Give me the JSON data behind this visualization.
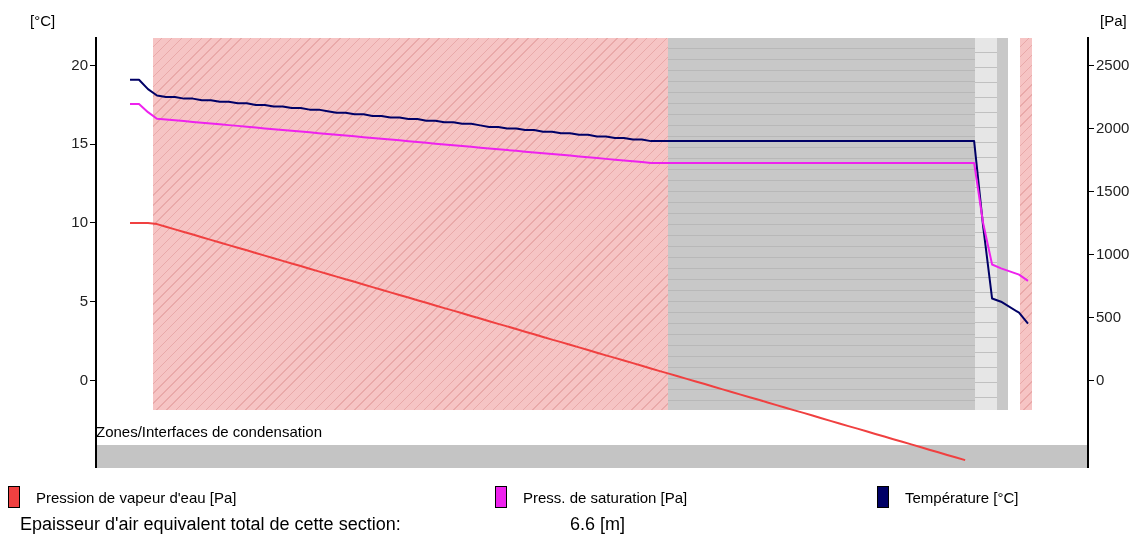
{
  "chart_data": {
    "type": "line",
    "ylabel": "[°C]",
    "y2label": "[Pa]",
    "categories": [
      null,
      null,
      null,
      null,
      null,
      null,
      null,
      null,
      null,
      null,
      null,
      null,
      null,
      null,
      null,
      null,
      null,
      null,
      null,
      null,
      null,
      null,
      null,
      null,
      null,
      null,
      null,
      null,
      null,
      null,
      null,
      null,
      null,
      null,
      null,
      null,
      null,
      null,
      null,
      null,
      null,
      null,
      null,
      null,
      null,
      null,
      null,
      null,
      null,
      null,
      null,
      null,
      null,
      null,
      null,
      null,
      null,
      null,
      null,
      null,
      null,
      null,
      null,
      null,
      null,
      null,
      null,
      null,
      null,
      null,
      null,
      null,
      null,
      null,
      null,
      null,
      null,
      null,
      null,
      null,
      null,
      null,
      null,
      null,
      null,
      null,
      null,
      null,
      null,
      null,
      null,
      null,
      null,
      null,
      null,
      null,
      null,
      null,
      null,
      null,
      null
    ],
    "ylim": [
      -5.5,
      21.75
    ],
    "yticks": [
      0,
      5,
      10,
      15,
      20
    ],
    "y2lim": [
      -687.5,
      2718.75
    ],
    "y2ticks": [
      0,
      500,
      1000,
      1500,
      2000,
      2500
    ],
    "legend": "bottom",
    "marker": "none",
    "line_style": "solid",
    "series": [
      {
        "name": "Pression de vapeur d'eau [Pa]",
        "color": "#f04040",
        "axis": "y2",
        "values": [
          1250,
          1250,
          1250,
          1241,
          1220,
          1199,
          1178,
          1158,
          1137,
          1116,
          1095,
          1074,
          1053,
          1033,
          1012,
          991,
          970,
          949,
          928,
          908,
          887,
          866,
          845,
          824,
          803,
          783,
          762,
          741,
          720,
          699,
          678,
          658,
          637,
          616,
          595,
          574,
          554,
          533,
          512,
          491,
          470,
          449,
          429,
          408,
          387,
          366,
          345,
          324,
          304,
          283,
          262,
          241,
          220,
          199,
          179,
          158,
          137,
          116,
          95,
          74,
          54,
          33,
          12,
          -9,
          -29,
          -50,
          -71,
          -92,
          -113,
          -134,
          -154,
          -175,
          -196,
          -217,
          -238,
          -258,
          -279,
          -300,
          -321,
          -342,
          -363,
          -383,
          -404,
          -425,
          -446,
          -467,
          -487,
          -508,
          -529,
          -550,
          -571,
          -592,
          -612,
          -633,
          null,
          null,
          null,
          null,
          null,
          null,
          null
        ]
      },
      {
        "name": "Press. de saturation [Pa]",
        "color": "#ee22ee",
        "axis": "y2",
        "values": [
          2195,
          2195,
          2130,
          2078,
          2072,
          2065,
          2059,
          2052,
          2046,
          2040,
          2033,
          2027,
          2021,
          2014,
          2008,
          2001,
          1995,
          1989,
          1982,
          1976,
          1970,
          1963,
          1957,
          1950,
          1944,
          1938,
          1931,
          1925,
          1918,
          1912,
          1906,
          1899,
          1893,
          1887,
          1880,
          1874,
          1867,
          1861,
          1855,
          1848,
          1842,
          1836,
          1829,
          1823,
          1816,
          1810,
          1804,
          1797,
          1791,
          1785,
          1778,
          1772,
          1765,
          1759,
          1753,
          1746,
          1740,
          1734,
          1727,
          1727,
          1727,
          1727,
          1727,
          1727,
          1727,
          1727,
          1727,
          1727,
          1727,
          1727,
          1727,
          1727,
          1727,
          1727,
          1727,
          1727,
          1727,
          1727,
          1727,
          1727,
          1727,
          1727,
          1727,
          1727,
          1727,
          1727,
          1727,
          1727,
          1727,
          1727,
          1727,
          1727,
          1727,
          1727,
          1727,
          1250,
          920,
          890,
          null,
          840,
          790
        ]
      },
      {
        "name": "Température [°C]",
        "color": "#000066",
        "axis": "y",
        "values": [
          19.1,
          19.1,
          18.5,
          18.1,
          18.0,
          18.0,
          17.9,
          17.9,
          17.8,
          17.8,
          17.7,
          17.7,
          17.6,
          17.6,
          17.5,
          17.5,
          17.4,
          17.4,
          17.3,
          17.3,
          17.2,
          17.2,
          17.1,
          17.0,
          17.0,
          16.9,
          16.9,
          16.8,
          16.8,
          16.7,
          16.7,
          16.6,
          16.6,
          16.5,
          16.5,
          16.4,
          16.4,
          16.3,
          16.3,
          16.2,
          16.1,
          16.1,
          16.0,
          16.0,
          15.9,
          15.9,
          15.8,
          15.8,
          15.7,
          15.7,
          15.6,
          15.6,
          15.5,
          15.5,
          15.4,
          15.4,
          15.3,
          15.3,
          15.2,
          15.2,
          15.2,
          15.2,
          15.2,
          15.2,
          15.2,
          15.2,
          15.2,
          15.2,
          15.2,
          15.2,
          15.2,
          15.2,
          15.2,
          15.2,
          15.2,
          15.2,
          15.2,
          15.2,
          15.2,
          15.2,
          15.2,
          15.2,
          15.2,
          15.2,
          15.2,
          15.2,
          15.2,
          15.2,
          15.2,
          15.2,
          15.2,
          15.2,
          15.2,
          15.2,
          15.2,
          9.8,
          5.2,
          5.0,
          null,
          4.3,
          3.6
        ]
      }
    ],
    "annotations": [
      "Zones/Interfaces de condensation",
      "Epaisseur d'air equivalent total de cette section:",
      "6.6 [m]"
    ]
  }
}
